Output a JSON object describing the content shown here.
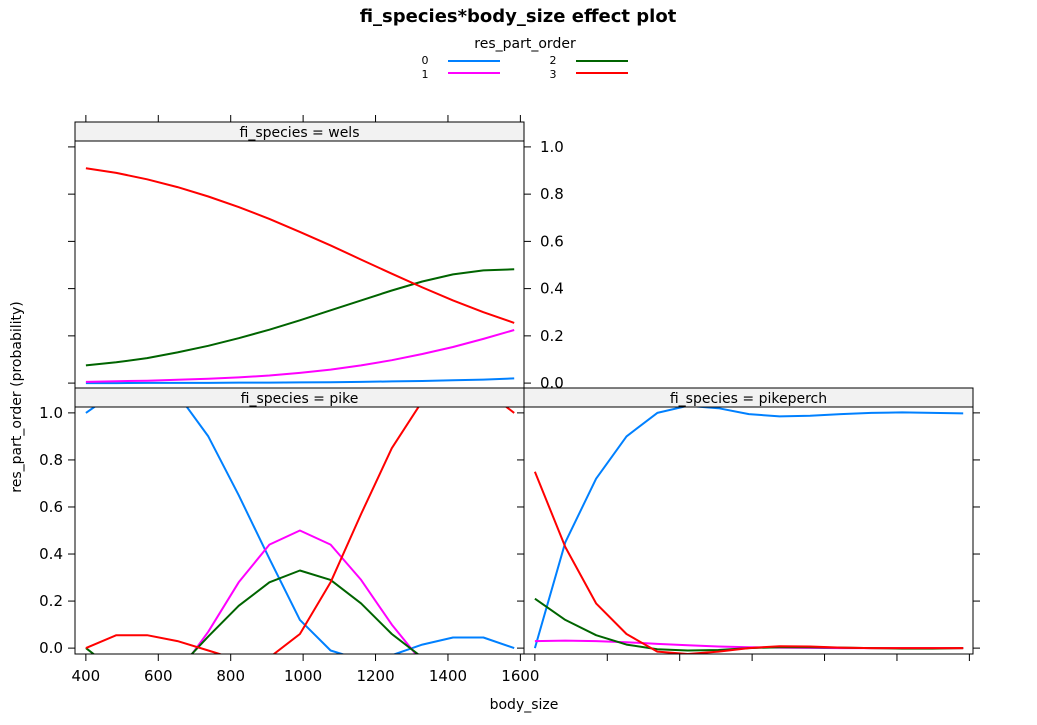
{
  "chart_data": {
    "type": "line",
    "title": "fi_species*body_size effect plot",
    "xlabel": "body_size",
    "ylabel": "res_part_order (probability)",
    "xlim": [
      370,
      1610
    ],
    "ylim": [
      -0.025,
      1.025
    ],
    "x_ticks": [
      400,
      600,
      800,
      1000,
      1200,
      1400,
      1600
    ],
    "y_ticks": [
      0.0,
      0.2,
      0.4,
      0.6,
      0.8,
      1.0
    ],
    "x_tick_labels": [
      "400",
      "600",
      "800",
      "1000",
      "1200",
      "1400",
      "1600"
    ],
    "y_tick_labels": [
      "0.0",
      "0.2",
      "0.4",
      "0.6",
      "0.8",
      "1.0"
    ],
    "legend": {
      "title": "res_part_order",
      "placement": "top",
      "entries": [
        {
          "label": "0",
          "color": "#0080ff"
        },
        {
          "label": "1",
          "color": "#ff00ff"
        },
        {
          "label": "2",
          "color": "#006400"
        },
        {
          "label": "3",
          "color": "#ff0000"
        }
      ]
    },
    "x": [
      400,
      484,
      569,
      653,
      738,
      822,
      907,
      991,
      1076,
      1160,
      1245,
      1329,
      1414,
      1498,
      1583
    ],
    "panels": [
      {
        "strip": "fi_species = wels",
        "series": [
          {
            "name": "0",
            "color": "#0080ff",
            "values": [
              0.0,
              0.0,
              0.001,
              0.001,
              0.001,
              0.002,
              0.002,
              0.003,
              0.004,
              0.005,
              0.007,
              0.009,
              0.012,
              0.015,
              0.02
            ]
          },
          {
            "name": "1",
            "color": "#ff00ff",
            "values": [
              0.005,
              0.008,
              0.01,
              0.014,
              0.018,
              0.024,
              0.032,
              0.043,
              0.057,
              0.075,
              0.097,
              0.123,
              0.153,
              0.187,
              0.225
            ]
          },
          {
            "name": "2",
            "color": "#006400",
            "values": [
              0.075,
              0.088,
              0.106,
              0.13,
              0.158,
              0.19,
              0.226,
              0.266,
              0.308,
              0.35,
              0.392,
              0.43,
              0.46,
              0.477,
              0.482
            ]
          },
          {
            "name": "3",
            "color": "#ff0000",
            "values": [
              0.91,
              0.89,
              0.863,
              0.83,
              0.79,
              0.745,
              0.695,
              0.64,
              0.583,
              0.523,
              0.463,
              0.405,
              0.35,
              0.3,
              0.255
            ]
          }
        ]
      },
      {
        "strip": "fi_species = pike",
        "series": [
          {
            "name": "0",
            "color": "#0080ff",
            "values": [
              1.0,
              1.09,
              1.12,
              1.08,
              0.9,
              0.65,
              0.38,
              0.12,
              -0.01,
              -0.05,
              -0.03,
              0.015,
              0.045,
              0.045,
              0.0
            ]
          },
          {
            "name": "1",
            "color": "#ff00ff",
            "values": [
              -0.08,
              -0.15,
              -0.18,
              -0.11,
              0.07,
              0.28,
              0.44,
              0.5,
              0.44,
              0.29,
              0.1,
              -0.06,
              -0.12,
              -0.1,
              -0.05
            ]
          },
          {
            "name": "2",
            "color": "#006400",
            "values": [
              0.0,
              -0.1,
              -0.16,
              -0.09,
              0.05,
              0.18,
              0.28,
              0.33,
              0.29,
              0.19,
              0.06,
              -0.04,
              -0.08,
              -0.07,
              -0.04
            ]
          },
          {
            "name": "3",
            "color": "#ff0000",
            "values": [
              0.0,
              0.055,
              0.055,
              0.03,
              -0.01,
              -0.05,
              -0.04,
              0.06,
              0.28,
              0.57,
              0.85,
              1.05,
              1.15,
              1.1,
              1.0
            ]
          }
        ]
      },
      {
        "strip": "fi_species = pikeperch",
        "series": [
          {
            "name": "0",
            "color": "#0080ff",
            "values": [
              0.0,
              0.45,
              0.72,
              0.9,
              1.0,
              1.03,
              1.02,
              0.995,
              0.985,
              0.988,
              0.995,
              1.0,
              1.002,
              1.0,
              0.998
            ]
          },
          {
            "name": "1",
            "color": "#ff00ff",
            "values": [
              0.03,
              0.032,
              0.03,
              0.025,
              0.018,
              0.012,
              0.007,
              0.004,
              0.002,
              0.001,
              0.0,
              0.0,
              0.0,
              0.0,
              0.0
            ]
          },
          {
            "name": "2",
            "color": "#006400",
            "values": [
              0.21,
              0.12,
              0.055,
              0.015,
              -0.005,
              -0.01,
              -0.008,
              0.0,
              0.004,
              0.004,
              0.002,
              0.0,
              -0.002,
              -0.002,
              0.0
            ]
          },
          {
            "name": "3",
            "color": "#ff0000",
            "values": [
              0.75,
              0.43,
              0.19,
              0.06,
              -0.015,
              -0.025,
              -0.015,
              0.0,
              0.008,
              0.007,
              0.002,
              0.0,
              0.0,
              0.0,
              0.0
            ]
          }
        ]
      }
    ]
  }
}
